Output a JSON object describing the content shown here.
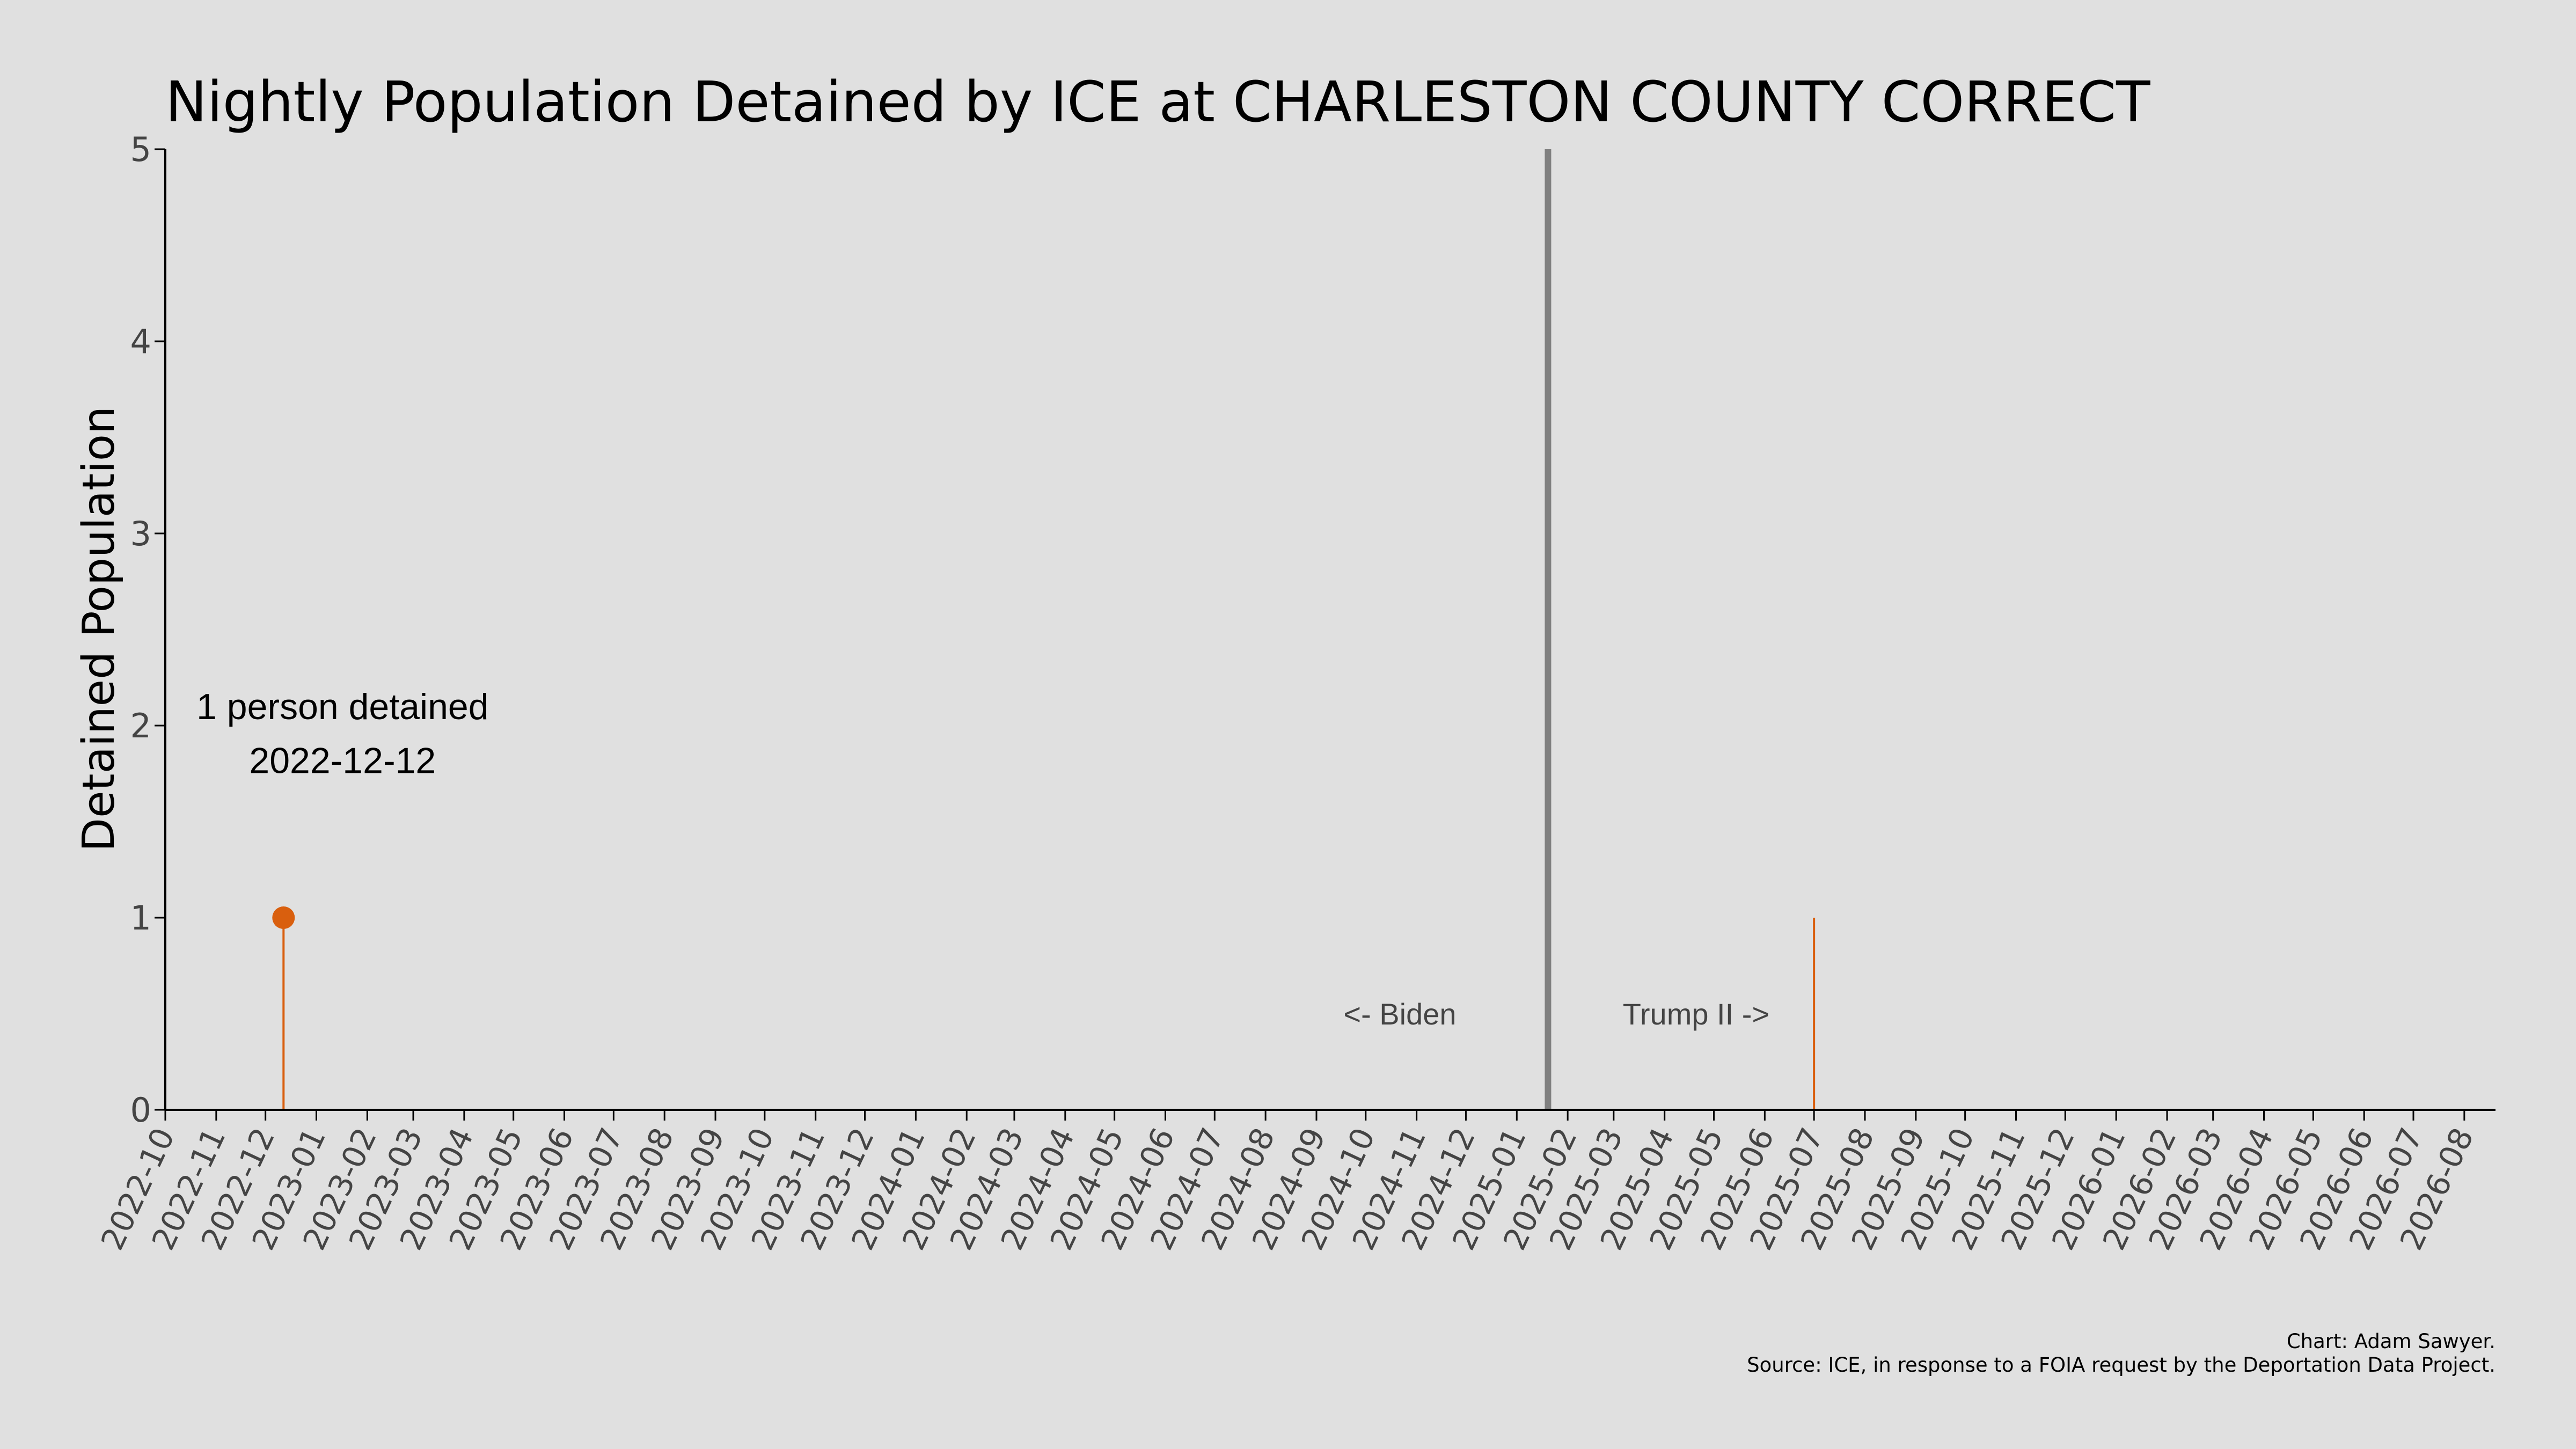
{
  "chart_data": {
    "type": "line",
    "title": "Nightly Population Detained by ICE at CHARLESTON COUNTY CORRECT",
    "xlabel": "",
    "ylabel": "Detained Population",
    "ylim": [
      0,
      5
    ],
    "yticks": [
      0,
      1,
      2,
      3,
      4,
      5
    ],
    "xlim": [
      "2022-10-01",
      "2026-08-20"
    ],
    "xticks": [
      "2022-10",
      "2022-11",
      "2022-12",
      "2023-01",
      "2023-02",
      "2023-03",
      "2023-04",
      "2023-05",
      "2023-06",
      "2023-07",
      "2023-08",
      "2023-09",
      "2023-10",
      "2023-11",
      "2023-12",
      "2024-01",
      "2024-02",
      "2024-03",
      "2024-04",
      "2024-05",
      "2024-06",
      "2024-07",
      "2024-08",
      "2024-09",
      "2024-10",
      "2024-11",
      "2024-12",
      "2025-01",
      "2025-02",
      "2025-03",
      "2025-04",
      "2025-05",
      "2025-06",
      "2025-07",
      "2025-08",
      "2025-09",
      "2025-10",
      "2025-11",
      "2025-12",
      "2026-01",
      "2026-02",
      "2026-03",
      "2026-04",
      "2026-05",
      "2026-06",
      "2026-07",
      "2026-08"
    ],
    "grid": false,
    "series": [
      {
        "color": "#d95f0e",
        "points": [
          {
            "x": "2022-12-12",
            "y": 1
          },
          {
            "x": "2025-07-01",
            "y": 1
          }
        ]
      }
    ],
    "highlight": {
      "x": "2022-12-12",
      "y": 1,
      "color": "#d95f0e"
    },
    "annotation": {
      "line1": "1 person detained",
      "line2": "2022-12-12"
    },
    "divider": {
      "x": "2025-01-20",
      "color": "#808080"
    },
    "era_labels": {
      "left": "<- Biden",
      "right": "Trump II ->"
    },
    "credit": {
      "line1": "Chart: Adam Sawyer.",
      "line2": "Source: ICE, in response to a FOIA request by the Deportation Data Project."
    }
  }
}
